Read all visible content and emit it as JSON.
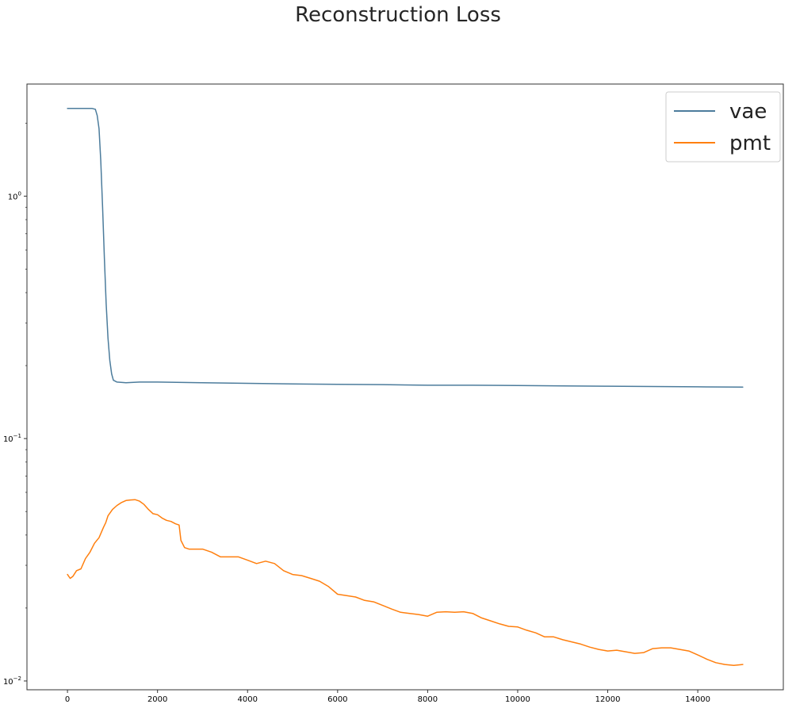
{
  "chart_data": {
    "type": "line",
    "title": "Reconstruction Loss",
    "xlabel": "",
    "ylabel": "",
    "xscale": "linear",
    "yscale": "log",
    "xlim": [
      -900,
      15900
    ],
    "ylim": [
      0.0092,
      2.9
    ],
    "grid": false,
    "legend_position": "top-right",
    "x_ticks": [
      0,
      2000,
      4000,
      6000,
      8000,
      10000,
      12000,
      14000
    ],
    "y_ticks": [
      {
        "value": 1,
        "base": "10",
        "exp": "0"
      },
      {
        "value": 0.1,
        "base": "10",
        "exp": "−1"
      },
      {
        "value": 0.01,
        "base": "10",
        "exp": "−2"
      }
    ],
    "series": [
      {
        "name": "vae",
        "color": "#4c7c9c",
        "points": [
          [
            0,
            2.3
          ],
          [
            300,
            2.3
          ],
          [
            550,
            2.3
          ],
          [
            620,
            2.28
          ],
          [
            660,
            2.15
          ],
          [
            700,
            1.9
          ],
          [
            740,
            1.4
          ],
          [
            780,
            0.9
          ],
          [
            820,
            0.55
          ],
          [
            860,
            0.36
          ],
          [
            900,
            0.26
          ],
          [
            940,
            0.21
          ],
          [
            980,
            0.185
          ],
          [
            1020,
            0.174
          ],
          [
            1100,
            0.171
          ],
          [
            1300,
            0.17
          ],
          [
            1600,
            0.171
          ],
          [
            2000,
            0.171
          ],
          [
            3000,
            0.17
          ],
          [
            4000,
            0.169
          ],
          [
            5000,
            0.168
          ],
          [
            6000,
            0.1675
          ],
          [
            7000,
            0.167
          ],
          [
            8000,
            0.166
          ],
          [
            9000,
            0.166
          ],
          [
            10000,
            0.1655
          ],
          [
            11000,
            0.165
          ],
          [
            12000,
            0.1645
          ],
          [
            13000,
            0.164
          ],
          [
            14000,
            0.1635
          ],
          [
            15000,
            0.163
          ]
        ]
      },
      {
        "name": "pmt",
        "color": "#ff7f0e",
        "points": [
          [
            0,
            0.0275
          ],
          [
            60,
            0.0265
          ],
          [
            120,
            0.027
          ],
          [
            200,
            0.0285
          ],
          [
            300,
            0.029
          ],
          [
            400,
            0.032
          ],
          [
            500,
            0.034
          ],
          [
            600,
            0.037
          ],
          [
            700,
            0.039
          ],
          [
            800,
            0.043
          ],
          [
            850,
            0.045
          ],
          [
            900,
            0.048
          ],
          [
            1000,
            0.051
          ],
          [
            1100,
            0.053
          ],
          [
            1200,
            0.0545
          ],
          [
            1300,
            0.0555
          ],
          [
            1400,
            0.0558
          ],
          [
            1500,
            0.056
          ],
          [
            1600,
            0.0552
          ],
          [
            1700,
            0.0535
          ],
          [
            1800,
            0.051
          ],
          [
            1900,
            0.049
          ],
          [
            2000,
            0.0485
          ],
          [
            2100,
            0.047
          ],
          [
            2200,
            0.046
          ],
          [
            2300,
            0.0455
          ],
          [
            2400,
            0.0445
          ],
          [
            2480,
            0.044
          ],
          [
            2520,
            0.038
          ],
          [
            2600,
            0.0355
          ],
          [
            2700,
            0.035
          ],
          [
            3000,
            0.035
          ],
          [
            3200,
            0.034
          ],
          [
            3400,
            0.0325
          ],
          [
            3600,
            0.0325
          ],
          [
            3800,
            0.0325
          ],
          [
            4000,
            0.0315
          ],
          [
            4200,
            0.0305
          ],
          [
            4400,
            0.0312
          ],
          [
            4600,
            0.0305
          ],
          [
            4800,
            0.0285
          ],
          [
            5000,
            0.0275
          ],
          [
            5200,
            0.0272
          ],
          [
            5400,
            0.0265
          ],
          [
            5600,
            0.0258
          ],
          [
            5800,
            0.0245
          ],
          [
            6000,
            0.0228
          ],
          [
            6200,
            0.0225
          ],
          [
            6400,
            0.0222
          ],
          [
            6600,
            0.0215
          ],
          [
            6800,
            0.0212
          ],
          [
            7000,
            0.0205
          ],
          [
            7200,
            0.0198
          ],
          [
            7400,
            0.0192
          ],
          [
            7600,
            0.019
          ],
          [
            7800,
            0.0188
          ],
          [
            8000,
            0.0185
          ],
          [
            8200,
            0.0192
          ],
          [
            8400,
            0.0193
          ],
          [
            8600,
            0.0192
          ],
          [
            8800,
            0.0193
          ],
          [
            9000,
            0.019
          ],
          [
            9200,
            0.0182
          ],
          [
            9400,
            0.0177
          ],
          [
            9600,
            0.0172
          ],
          [
            9800,
            0.0168
          ],
          [
            10000,
            0.0167
          ],
          [
            10200,
            0.0162
          ],
          [
            10400,
            0.0158
          ],
          [
            10600,
            0.0152
          ],
          [
            10800,
            0.0152
          ],
          [
            11000,
            0.0148
          ],
          [
            11200,
            0.0145
          ],
          [
            11400,
            0.0142
          ],
          [
            11600,
            0.0138
          ],
          [
            11800,
            0.0135
          ],
          [
            12000,
            0.0133
          ],
          [
            12200,
            0.0134
          ],
          [
            12400,
            0.0132
          ],
          [
            12600,
            0.013
          ],
          [
            12800,
            0.0131
          ],
          [
            13000,
            0.0136
          ],
          [
            13200,
            0.0137
          ],
          [
            13400,
            0.0137
          ],
          [
            13600,
            0.0135
          ],
          [
            13800,
            0.0133
          ],
          [
            14000,
            0.0128
          ],
          [
            14200,
            0.0123
          ],
          [
            14400,
            0.0119
          ],
          [
            14600,
            0.0117
          ],
          [
            14800,
            0.0116
          ],
          [
            15000,
            0.0117
          ]
        ]
      }
    ]
  }
}
